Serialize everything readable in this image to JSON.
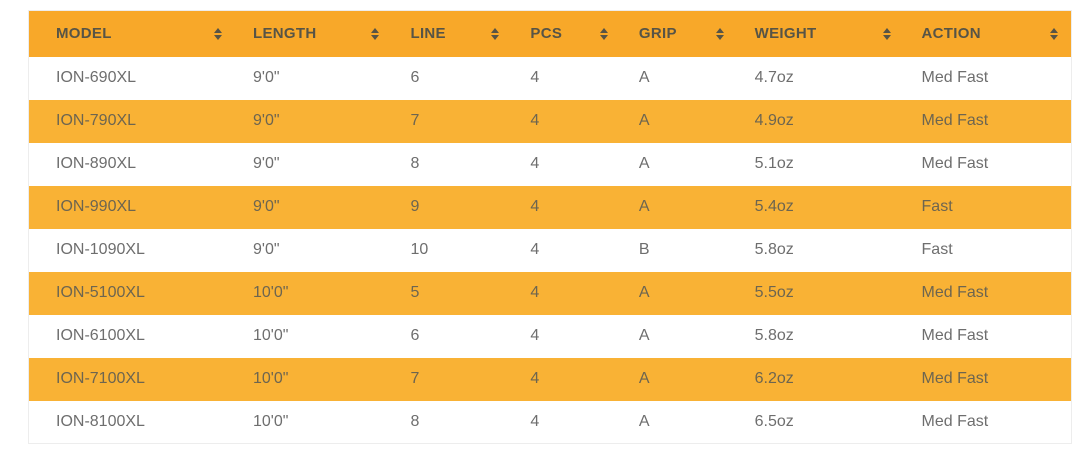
{
  "table": {
    "columns": [
      {
        "label": "MODEL",
        "sort_icon": "sort-both-icon"
      },
      {
        "label": "LENGTH",
        "sort_icon": "sort-both-icon"
      },
      {
        "label": "LINE",
        "sort_icon": "sort-both-icon"
      },
      {
        "label": "PCS",
        "sort_icon": "sort-both-icon"
      },
      {
        "label": "GRIP",
        "sort_icon": "sort-both-icon"
      },
      {
        "label": "WEIGHT",
        "sort_icon": "sort-both-icon"
      },
      {
        "label": "ACTION",
        "sort_icon": "sort-both-icon"
      }
    ],
    "rows": [
      {
        "striped": false,
        "cells": [
          "ION-690XL",
          "9'0\"",
          "6",
          "4",
          "A",
          "4.7oz",
          "Med Fast"
        ]
      },
      {
        "striped": true,
        "cells": [
          "ION-790XL",
          "9'0\"",
          "7",
          "4",
          "A",
          "4.9oz",
          "Med Fast"
        ]
      },
      {
        "striped": false,
        "cells": [
          "ION-890XL",
          "9'0\"",
          "8",
          "4",
          "A",
          "5.1oz",
          "Med Fast"
        ]
      },
      {
        "striped": true,
        "cells": [
          "ION-990XL",
          "9'0\"",
          "9",
          "4",
          "A",
          "5.4oz",
          "Fast"
        ]
      },
      {
        "striped": false,
        "cells": [
          "ION-1090XL",
          "9'0\"",
          "10",
          "4",
          "B",
          "5.8oz",
          "Fast"
        ]
      },
      {
        "striped": true,
        "cells": [
          "ION-5100XL",
          "10'0\"",
          "5",
          "4",
          "A",
          "5.5oz",
          "Med Fast"
        ]
      },
      {
        "striped": false,
        "cells": [
          "ION-6100XL",
          "10'0\"",
          "6",
          "4",
          "A",
          "5.8oz",
          "Med Fast"
        ]
      },
      {
        "striped": true,
        "cells": [
          "ION-7100XL",
          "10'0\"",
          "7",
          "4",
          "A",
          "6.2oz",
          "Med Fast"
        ]
      },
      {
        "striped": false,
        "cells": [
          "ION-8100XL",
          "10'0\"",
          "8",
          "4",
          "A",
          "6.5oz",
          "Med Fast"
        ]
      }
    ],
    "colors": {
      "header_bg": "#F8A829",
      "stripe_bg": "#F9B235",
      "header_text": "#575446",
      "body_text": "#6e6e6e"
    }
  }
}
